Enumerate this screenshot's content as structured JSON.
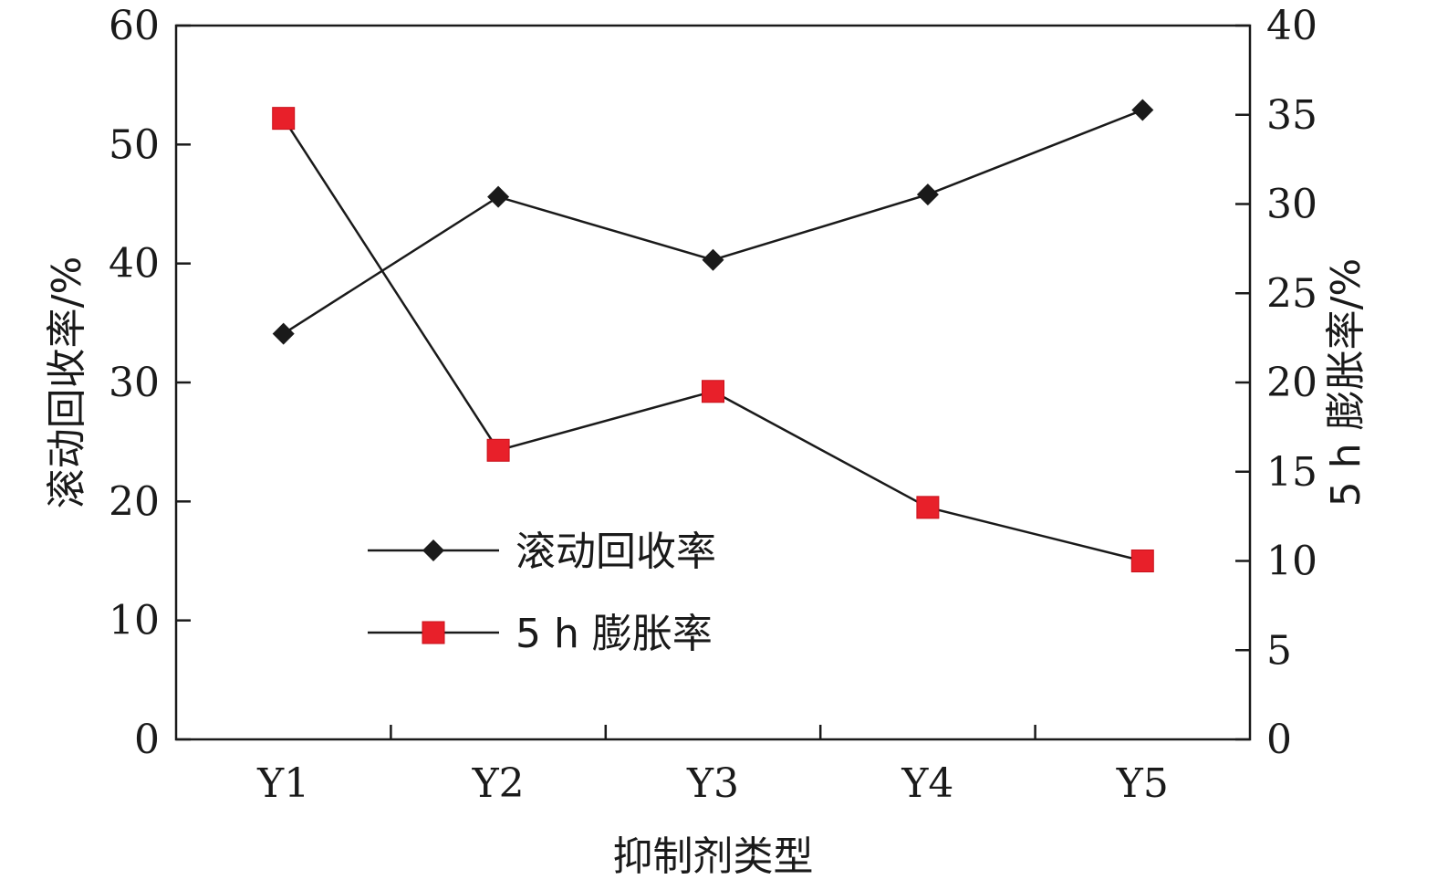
{
  "chart_data": {
    "type": "line",
    "title": "",
    "xlabel": "抑制剂类型",
    "ylabel_left": "滚动回收率/%",
    "ylabel_right": "5 h 膨胀率/%",
    "categories": [
      "Y1",
      "Y2",
      "Y3",
      "Y4",
      "Y5"
    ],
    "ylim_left": [
      0,
      60
    ],
    "yticks_left": [
      0,
      10,
      20,
      30,
      40,
      50,
      60
    ],
    "ylim_right": [
      0,
      40
    ],
    "yticks_right": [
      0,
      5,
      10,
      15,
      20,
      25,
      30,
      35,
      40
    ],
    "grid": false,
    "legend_position": "center-left",
    "series": [
      {
        "name": "滚动回收率",
        "axis": "left",
        "marker": "diamond",
        "color": "#1a1a1a",
        "values": [
          34.1,
          45.6,
          40.3,
          45.8,
          52.9
        ]
      },
      {
        "name": "5 h 膨胀率",
        "axis": "right",
        "marker": "square",
        "color": "#e8202a",
        "values": [
          34.8,
          16.2,
          19.5,
          13.0,
          10.0
        ]
      }
    ]
  }
}
